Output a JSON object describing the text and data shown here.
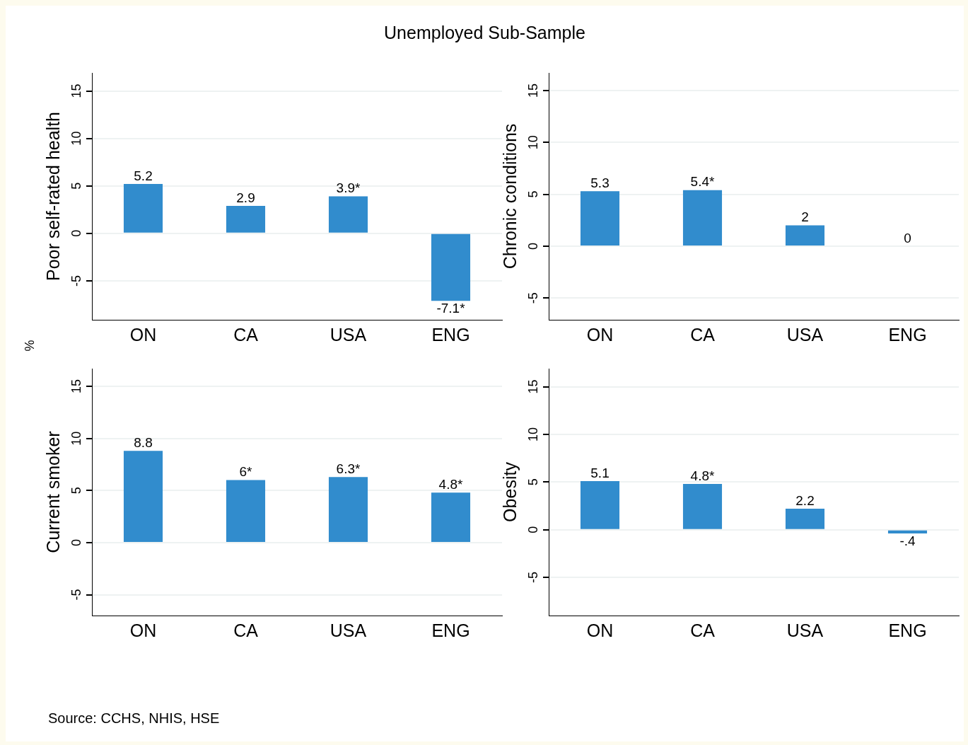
{
  "chart_data": [
    {
      "type": "bar",
      "title": "Unemployed Sub-Sample",
      "ylabel": "Poor self-rated health",
      "categories": [
        "ON",
        "CA",
        "USA",
        "ENG"
      ],
      "values": [
        5.2,
        2.9,
        3.9,
        -7.1
      ],
      "value_labels": [
        "5.2",
        "2.9",
        "3.9*",
        "-7.1*"
      ],
      "color": "#318ccd",
      "ylim": [
        -9.1,
        16.9
      ],
      "yticks": [
        -5,
        0,
        5,
        10,
        15
      ],
      "grid": "y",
      "legend": false,
      "annotations": [
        "%",
        "Source: CCHS, NHIS, HSE"
      ]
    },
    {
      "type": "bar",
      "ylabel": "Chronic conditions",
      "categories": [
        "ON",
        "CA",
        "USA",
        "ENG"
      ],
      "values": [
        5.3,
        5.4,
        2,
        0
      ],
      "value_labels": [
        "5.3",
        "5.4*",
        "2",
        "0"
      ],
      "color": "#318ccd",
      "ylim": [
        -7.1,
        16.7
      ],
      "yticks": [
        -5,
        0,
        5,
        10,
        15
      ],
      "grid": "y",
      "legend": false
    },
    {
      "type": "bar",
      "ylabel": "Current smoker",
      "categories": [
        "ON",
        "CA",
        "USA",
        "ENG"
      ],
      "values": [
        8.8,
        6,
        6.3,
        4.8
      ],
      "value_labels": [
        "8.8",
        "6*",
        "6.3*",
        "4.8*"
      ],
      "color": "#318ccd",
      "ylim": [
        -7,
        16.7
      ],
      "yticks": [
        -5,
        0,
        5,
        10,
        15
      ],
      "grid": "y",
      "legend": false
    },
    {
      "type": "bar",
      "ylabel": "Obesity",
      "categories": [
        "ON",
        "CA",
        "USA",
        "ENG"
      ],
      "values": [
        5.1,
        4.8,
        2.2,
        -0.4
      ],
      "value_labels": [
        "5.1",
        "4.8*",
        "2.2",
        "-.4"
      ],
      "color": "#318ccd",
      "ylim": [
        -9,
        16.9
      ],
      "yticks": [
        -5,
        0,
        5,
        10,
        15
      ],
      "grid": "y",
      "legend": false
    }
  ]
}
